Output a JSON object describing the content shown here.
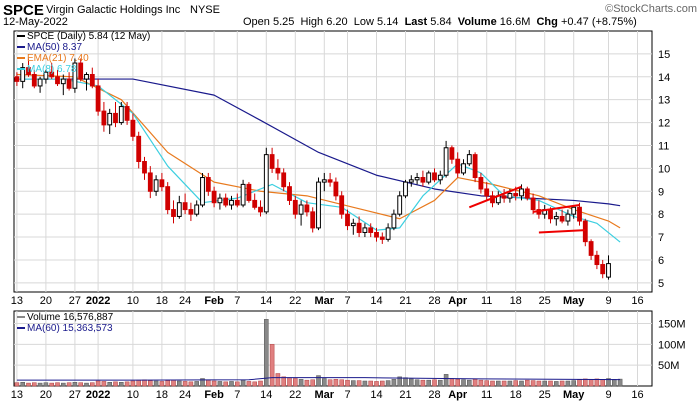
{
  "header": {
    "symbol": "SPCE",
    "company": "Virgin Galactic Holdings Inc",
    "exchange": "NYSE",
    "date": "12-May-2022",
    "watermark": "©StockCharts.com",
    "quote": {
      "open_label": "Open",
      "open": "5.25",
      "high_label": "High",
      "high": "6.20",
      "low_label": "Low",
      "low": "5.14",
      "last_label": "Last",
      "last": "5.84",
      "volume_label": "Volume",
      "volume": "16.6M",
      "chg_label": "Chg",
      "chg": "+0.47 (+8.75%)"
    }
  },
  "colors": {
    "up": "#000000",
    "down": "#d00000",
    "ma50": "#1a1a8c",
    "ema21": "#e87a1e",
    "ma8": "#3ccfe0",
    "vol_up": "#888888",
    "vol_down": "#e08080",
    "trend": "#ee0000",
    "grid": "#d8d8d8"
  },
  "legend": {
    "price": "SPCE (Daily) 5.84 (12 May)",
    "ma50": "MA(50) 8.37",
    "ema21": "EMA(21) 7.40",
    "ma8": "MA(8) 6.78",
    "volume": "Volume 16,576,887",
    "vma": "MA(60) 15,363,573"
  },
  "chart_data": [
    {
      "type": "candlestick",
      "title": "SPCE (Daily) 5.84 (12 May)",
      "ylim": [
        4.6,
        16
      ],
      "y_ticks": [
        5,
        6,
        7,
        8,
        9,
        10,
        11,
        12,
        13,
        14,
        15
      ],
      "x_tick_labels": [
        {
          "label": "13",
          "i": 0
        },
        {
          "label": "20",
          "i": 5
        },
        {
          "label": "27",
          "i": 10
        },
        {
          "label": "2022",
          "i": 14,
          "bold": true
        },
        {
          "label": "10",
          "i": 20
        },
        {
          "label": "18",
          "i": 25
        },
        {
          "label": "24",
          "i": 29
        },
        {
          "label": "Feb",
          "i": 34,
          "bold": true
        },
        {
          "label": "7",
          "i": 38
        },
        {
          "label": "14",
          "i": 43
        },
        {
          "label": "22",
          "i": 48
        },
        {
          "label": "Mar",
          "i": 53,
          "bold": true
        },
        {
          "label": "7",
          "i": 57
        },
        {
          "label": "14",
          "i": 62
        },
        {
          "label": "21",
          "i": 67
        },
        {
          "label": "28",
          "i": 72
        },
        {
          "label": "Apr",
          "i": 76,
          "bold": true
        },
        {
          "label": "11",
          "i": 81
        },
        {
          "label": "18",
          "i": 86
        },
        {
          "label": "25",
          "i": 91
        },
        {
          "label": "May",
          "i": 96,
          "bold": true
        },
        {
          "label": "9",
          "i": 102
        },
        {
          "label": "16",
          "i": 107
        }
      ],
      "candles": [
        [
          14.0,
          14.2,
          13.6,
          13.8
        ],
        [
          13.8,
          14.6,
          13.5,
          14.4
        ],
        [
          14.4,
          14.8,
          14.0,
          14.1
        ],
        [
          14.1,
          14.3,
          13.5,
          13.6
        ],
        [
          13.6,
          14.0,
          13.3,
          13.9
        ],
        [
          13.9,
          14.3,
          13.7,
          14.2
        ],
        [
          14.2,
          14.6,
          13.9,
          14.0
        ],
        [
          14.0,
          14.3,
          13.6,
          13.7
        ],
        [
          13.7,
          14.1,
          13.2,
          13.9
        ],
        [
          13.9,
          14.2,
          13.4,
          13.5
        ],
        [
          13.5,
          14.8,
          13.3,
          14.6
        ],
        [
          14.6,
          14.8,
          13.8,
          13.9
        ],
        [
          13.9,
          14.2,
          13.4,
          14.1
        ],
        [
          14.1,
          14.4,
          13.5,
          13.6
        ],
        [
          13.6,
          13.9,
          12.3,
          12.5
        ],
        [
          12.5,
          12.9,
          11.6,
          11.9
        ],
        [
          11.9,
          12.6,
          11.5,
          12.4
        ],
        [
          12.4,
          12.9,
          11.8,
          12.0
        ],
        [
          12.0,
          12.9,
          11.9,
          12.7
        ],
        [
          12.7,
          12.9,
          11.9,
          12.1
        ],
        [
          12.1,
          12.4,
          11.2,
          11.4
        ],
        [
          11.4,
          11.6,
          10.0,
          10.3
        ],
        [
          10.3,
          10.5,
          9.5,
          9.8
        ],
        [
          9.8,
          10.1,
          8.7,
          9.0
        ],
        [
          9.0,
          9.7,
          8.8,
          9.5
        ],
        [
          9.5,
          9.8,
          9.0,
          9.2
        ],
        [
          9.2,
          9.4,
          8.0,
          8.2
        ],
        [
          8.2,
          8.6,
          7.6,
          7.9
        ],
        [
          7.9,
          8.8,
          7.8,
          8.5
        ],
        [
          8.5,
          8.9,
          8.0,
          8.2
        ],
        [
          8.2,
          8.5,
          7.7,
          8.0
        ],
        [
          8.0,
          8.6,
          7.9,
          8.4
        ],
        [
          8.4,
          9.8,
          8.3,
          9.6
        ],
        [
          9.6,
          9.8,
          8.8,
          9.0
        ],
        [
          9.0,
          9.2,
          8.3,
          8.5
        ],
        [
          8.5,
          8.9,
          8.2,
          8.7
        ],
        [
          8.7,
          8.9,
          8.3,
          8.4
        ],
        [
          8.4,
          8.8,
          8.2,
          8.6
        ],
        [
          8.6,
          8.9,
          8.3,
          8.4
        ],
        [
          8.4,
          9.5,
          8.3,
          9.3
        ],
        [
          9.3,
          9.4,
          8.5,
          8.6
        ],
        [
          8.6,
          8.9,
          8.2,
          8.3
        ],
        [
          8.3,
          8.6,
          7.9,
          8.1
        ],
        [
          8.1,
          10.9,
          8.0,
          10.6
        ],
        [
          10.6,
          10.9,
          9.8,
          10.0
        ],
        [
          10.0,
          10.4,
          9.5,
          9.8
        ],
        [
          9.8,
          10.0,
          9.0,
          9.2
        ],
        [
          9.2,
          9.4,
          8.4,
          8.6
        ],
        [
          8.6,
          8.8,
          7.8,
          8.0
        ],
        [
          8.0,
          8.6,
          7.5,
          8.4
        ],
        [
          8.4,
          8.6,
          7.9,
          8.1
        ],
        [
          8.1,
          8.3,
          7.2,
          7.4
        ],
        [
          7.4,
          9.6,
          7.3,
          9.4
        ],
        [
          9.4,
          9.8,
          9.0,
          9.5
        ],
        [
          9.5,
          9.8,
          9.2,
          9.4
        ],
        [
          9.4,
          9.6,
          8.6,
          8.8
        ],
        [
          8.8,
          9.0,
          7.8,
          8.0
        ],
        [
          8.0,
          8.2,
          7.3,
          7.5
        ],
        [
          7.5,
          7.8,
          7.1,
          7.6
        ],
        [
          7.6,
          7.9,
          7.0,
          7.2
        ],
        [
          7.2,
          7.6,
          7.0,
          7.4
        ],
        [
          7.4,
          7.6,
          7.0,
          7.2
        ],
        [
          7.2,
          7.4,
          6.8,
          7.0
        ],
        [
          7.0,
          7.2,
          6.7,
          6.9
        ],
        [
          6.9,
          7.6,
          6.8,
          7.4
        ],
        [
          7.4,
          8.2,
          7.3,
          8.0
        ],
        [
          8.0,
          9.0,
          7.9,
          8.8
        ],
        [
          8.8,
          9.5,
          8.7,
          9.4
        ],
        [
          9.4,
          9.7,
          9.2,
          9.5
        ],
        [
          9.5,
          9.8,
          9.3,
          9.6
        ],
        [
          9.6,
          9.9,
          9.2,
          9.4
        ],
        [
          9.4,
          9.9,
          9.3,
          9.8
        ],
        [
          9.8,
          10.0,
          9.4,
          9.5
        ],
        [
          9.5,
          9.9,
          9.3,
          9.7
        ],
        [
          9.7,
          11.2,
          9.6,
          10.9
        ],
        [
          10.9,
          11.0,
          10.2,
          10.4
        ],
        [
          10.4,
          10.7,
          9.6,
          9.8
        ],
        [
          9.8,
          10.4,
          9.7,
          10.2
        ],
        [
          10.2,
          10.8,
          10.1,
          10.6
        ],
        [
          10.6,
          10.7,
          9.4,
          9.6
        ],
        [
          9.6,
          9.8,
          8.9,
          9.1
        ],
        [
          9.1,
          9.4,
          8.6,
          8.8
        ],
        [
          8.8,
          9.0,
          8.3,
          8.5
        ],
        [
          8.5,
          9.0,
          8.4,
          8.8
        ],
        [
          8.8,
          9.1,
          8.5,
          8.7
        ],
        [
          8.7,
          9.1,
          8.5,
          8.9
        ],
        [
          8.9,
          9.2,
          8.6,
          8.8
        ],
        [
          8.8,
          9.3,
          8.6,
          9.1
        ],
        [
          9.1,
          9.2,
          8.6,
          8.7
        ],
        [
          8.7,
          8.9,
          8.0,
          8.2
        ],
        [
          8.2,
          8.6,
          7.8,
          8.0
        ],
        [
          8.0,
          8.4,
          7.8,
          8.2
        ],
        [
          8.2,
          8.3,
          7.6,
          7.8
        ],
        [
          7.8,
          8.1,
          7.5,
          7.9
        ],
        [
          7.9,
          8.2,
          7.6,
          7.7
        ],
        [
          7.7,
          8.2,
          7.5,
          8.0
        ],
        [
          8.0,
          8.4,
          7.8,
          8.3
        ],
        [
          8.3,
          8.5,
          7.5,
          7.7
        ],
        [
          7.7,
          7.8,
          6.6,
          6.8
        ],
        [
          6.8,
          6.9,
          6.0,
          6.2
        ],
        [
          6.2,
          6.4,
          5.6,
          5.8
        ],
        [
          5.8,
          6.0,
          5.2,
          5.4
        ],
        [
          5.25,
          6.2,
          5.14,
          5.84
        ]
      ],
      "ma50": [
        [
          0,
          13.9
        ],
        [
          20,
          13.9
        ],
        [
          34,
          13.2
        ],
        [
          42,
          12.1
        ],
        [
          52,
          10.7
        ],
        [
          62,
          9.7
        ],
        [
          72,
          9.1
        ],
        [
          80,
          8.8
        ],
        [
          88,
          8.7
        ],
        [
          96,
          8.6
        ],
        [
          102,
          8.45
        ],
        [
          104,
          8.37
        ]
      ],
      "ema21": [
        [
          0,
          14.1
        ],
        [
          10,
          14.0
        ],
        [
          18,
          13.0
        ],
        [
          26,
          10.7
        ],
        [
          34,
          9.4
        ],
        [
          42,
          9.0
        ],
        [
          50,
          8.8
        ],
        [
          58,
          8.3
        ],
        [
          66,
          7.8
        ],
        [
          72,
          8.6
        ],
        [
          76,
          9.6
        ],
        [
          82,
          9.3
        ],
        [
          90,
          8.8
        ],
        [
          96,
          8.2
        ],
        [
          102,
          7.7
        ],
        [
          104,
          7.4
        ]
      ],
      "ma8": [
        [
          0,
          13.9
        ],
        [
          8,
          13.9
        ],
        [
          14,
          13.6
        ],
        [
          20,
          12.4
        ],
        [
          26,
          10.1
        ],
        [
          32,
          8.5
        ],
        [
          38,
          8.7
        ],
        [
          44,
          9.3
        ],
        [
          50,
          8.5
        ],
        [
          56,
          8.3
        ],
        [
          62,
          7.3
        ],
        [
          66,
          7.4
        ],
        [
          70,
          8.8
        ],
        [
          76,
          10.2
        ],
        [
          80,
          9.8
        ],
        [
          84,
          8.8
        ],
        [
          90,
          8.6
        ],
        [
          96,
          7.9
        ],
        [
          100,
          7.6
        ],
        [
          104,
          6.78
        ]
      ],
      "trendlines": [
        [
          [
            78,
            8.3
          ],
          [
            87,
            9.2
          ]
        ],
        [
          [
            89,
            8.1
          ],
          [
            97,
            8.4
          ]
        ],
        [
          [
            90,
            7.2
          ],
          [
            98,
            7.3
          ]
        ]
      ]
    },
    {
      "type": "bar",
      "title": "Volume 16,576,887",
      "y_tick_labels": [
        "50M",
        "100M",
        "150M"
      ],
      "y_ticks": [
        50,
        100,
        150
      ],
      "ylim": [
        0,
        180
      ],
      "unit": "M",
      "values": [
        8,
        9,
        7,
        8,
        7,
        8,
        7,
        8,
        7,
        8,
        9,
        8,
        7,
        8,
        12,
        11,
        9,
        10,
        9,
        10,
        12,
        14,
        15,
        13,
        12,
        11,
        13,
        14,
        12,
        11,
        10,
        11,
        18,
        14,
        12,
        11,
        10,
        11,
        10,
        14,
        11,
        10,
        12,
        160,
        100,
        30,
        22,
        20,
        18,
        16,
        14,
        15,
        25,
        18,
        15,
        16,
        15,
        14,
        13,
        13,
        12,
        12,
        11,
        12,
        13,
        16,
        22,
        20,
        17,
        15,
        14,
        14,
        15,
        14,
        28,
        18,
        16,
        15,
        14,
        16,
        14,
        13,
        12,
        12,
        12,
        12,
        13,
        12,
        14,
        13,
        12,
        12,
        12,
        11,
        12,
        12,
        13,
        15,
        17,
        16,
        17,
        16,
        18,
        16,
        16.6
      ],
      "vma": [
        [
          0,
          14
        ],
        [
          20,
          14
        ],
        [
          40,
          15
        ],
        [
          44,
          20
        ],
        [
          60,
          20
        ],
        [
          80,
          17
        ],
        [
          104,
          15.4
        ]
      ]
    }
  ]
}
